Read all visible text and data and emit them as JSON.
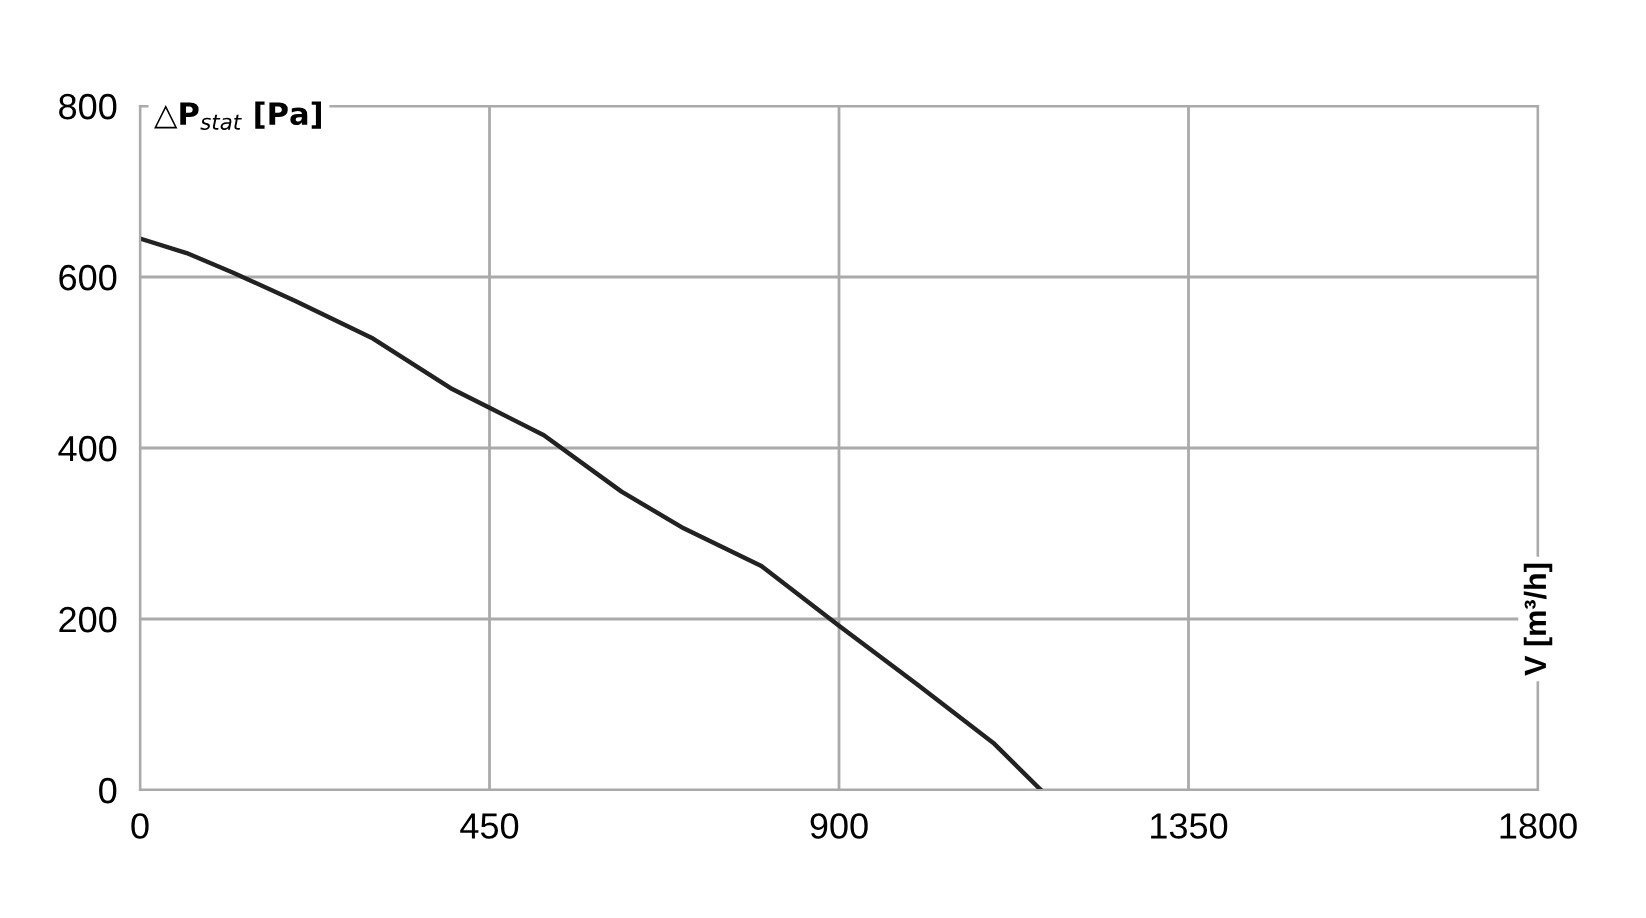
{
  "chart_data": {
    "type": "line",
    "annotations": [
      "V [m³/h]"
    ],
    "ylabel": "△P$_{stat}$ [Pa]",
    "x": [
      0,
      60,
      120,
      200,
      300,
      400,
      450,
      520,
      620,
      700,
      800,
      900,
      1000,
      1100,
      1160
    ],
    "series": [
      {
        "color": "#222222",
        "values": [
          645,
          628,
          605,
          572,
          528,
          470,
          447,
          415,
          349,
          306,
          262,
          192,
          124,
          54,
          0
        ]
      }
    ],
    "xlim": [
      0,
      1800
    ],
    "ylim": [
      0,
      800
    ],
    "xticks": [
      0,
      450,
      900,
      1350,
      1800
    ],
    "yticks": [
      0,
      200,
      400,
      600,
      800
    ],
    "grid": true,
    "legend": false,
    "marker": "none",
    "line_style": "solid"
  }
}
